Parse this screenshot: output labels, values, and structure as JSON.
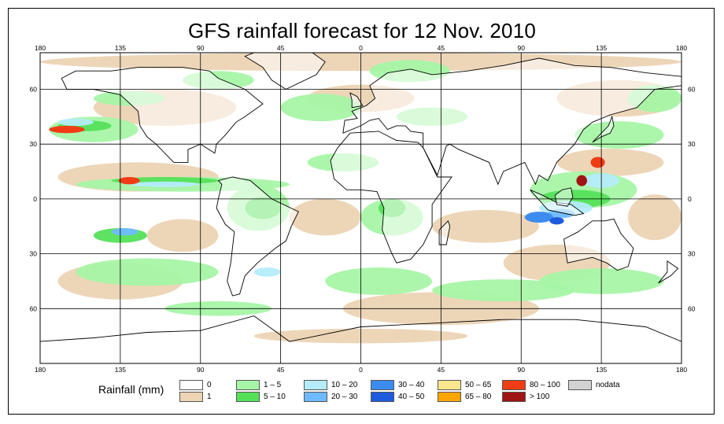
{
  "title": "GFS rainfall forecast for 12 Nov. 2010",
  "map": {
    "lon_ticks_top": [
      "180",
      "135",
      "90",
      "45",
      "0",
      "45",
      "90",
      "135",
      "180"
    ],
    "lon_ticks_bottom": [
      "180",
      "135",
      "90",
      "45",
      "0",
      "45",
      "90",
      "135",
      "180"
    ],
    "lat_ticks_left": [
      "60",
      "30",
      "0",
      "30",
      "60"
    ],
    "lat_ticks_right": [
      "60",
      "30",
      "0",
      "30",
      "60"
    ],
    "colors": {
      "land_outline": "#000000",
      "grid": "#000000"
    }
  },
  "legend": {
    "label": "Rainfall (mm)",
    "items": [
      {
        "label": "0",
        "color": "#ffffff"
      },
      {
        "label": "1",
        "color": "#ecd4b4"
      },
      {
        "label": "1 – 5",
        "color": "#a6f5a6"
      },
      {
        "label": "5 – 10",
        "color": "#55e05a"
      },
      {
        "label": "10 – 20",
        "color": "#b4ecfa"
      },
      {
        "label": "20 – 30",
        "color": "#6ebaff"
      },
      {
        "label": "30 – 40",
        "color": "#3c8cf0"
      },
      {
        "label": "40 – 50",
        "color": "#1e5adc"
      },
      {
        "label": "50 – 65",
        "color": "#fae68c"
      },
      {
        "label": "65 – 80",
        "color": "#ffa500"
      },
      {
        "label": "80 – 100",
        "color": "#f03c14"
      },
      {
        "label": "> 100",
        "color": "#a01414"
      },
      {
        "label": "nodata",
        "color": "#d2d2d2"
      }
    ]
  }
}
